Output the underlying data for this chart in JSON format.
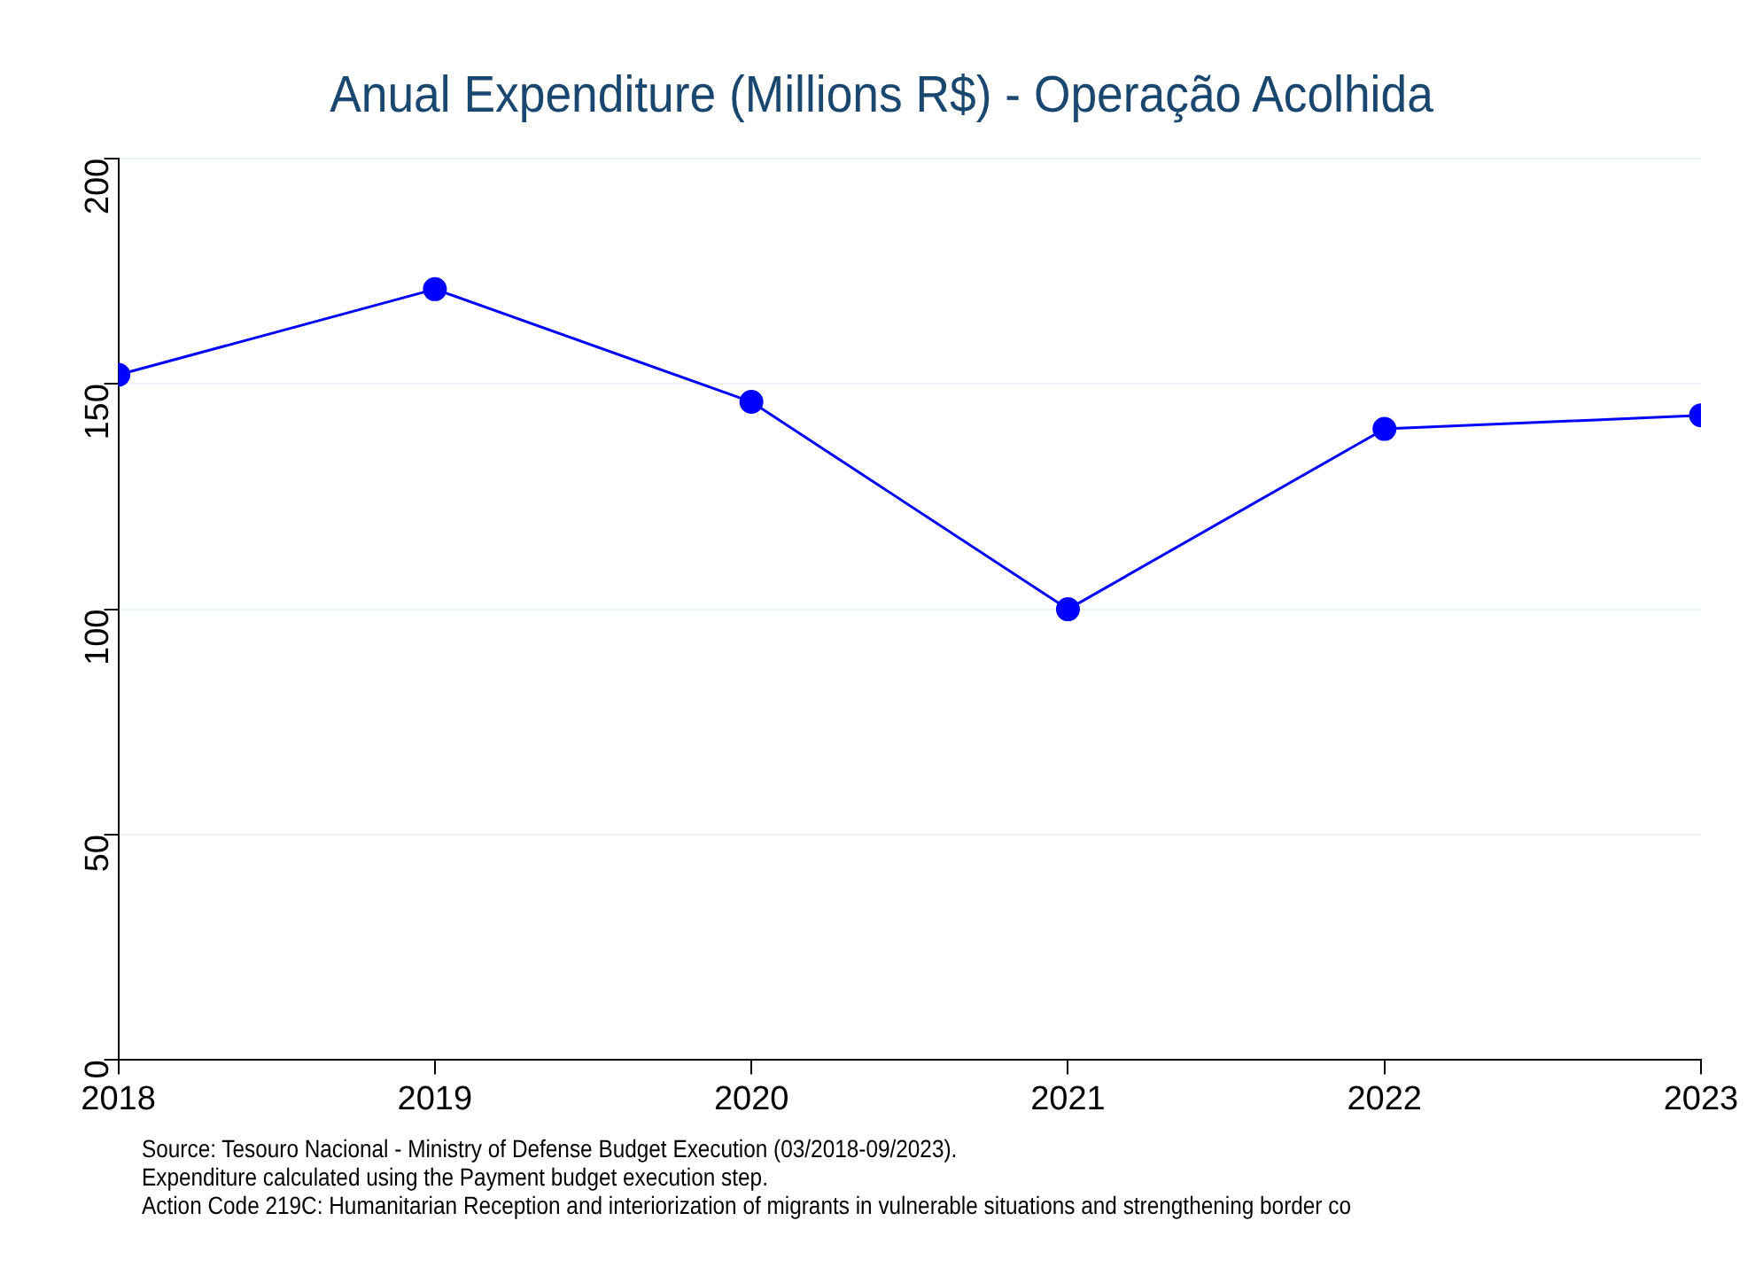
{
  "chart_data": {
    "type": "line",
    "title": "Anual Expenditure (Millions R$) - Operação Acolhida",
    "x": [
      2018,
      2019,
      2020,
      2021,
      2022,
      2023
    ],
    "series": [
      {
        "color": "#0000ff",
        "values": [
          152,
          171,
          146,
          100,
          140,
          143
        ]
      }
    ],
    "xlim": [
      2018,
      2023
    ],
    "xticks": [
      2018,
      2019,
      2020,
      2021,
      2022,
      2023
    ],
    "ylim": [
      0,
      200
    ],
    "yticks": [
      0,
      50,
      100,
      150,
      200
    ],
    "grid": "y",
    "legend": false,
    "marker": "circle",
    "line_style": "solid",
    "annotations": [
      "Source: Tesouro Nacional - Ministry of Defense Budget Execution (03/2018-09/2023).",
      "Expenditure calculated using the Payment budget execution step.",
      "Action Code 219C: Humanitarian Reception and interiorization of migrants in vulnerable situations and strengthening border co"
    ]
  }
}
